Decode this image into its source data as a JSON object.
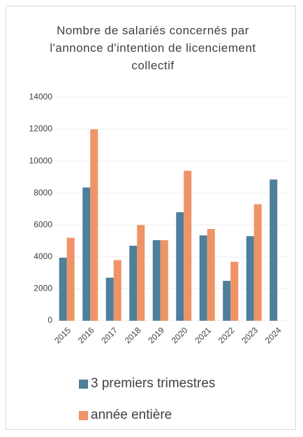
{
  "chart_data": {
    "type": "bar",
    "title": "Nombre de salariés concernés par l'annonce d'intention de licenciement collectif",
    "categories": [
      "2015",
      "2016",
      "2017",
      "2018",
      "2019",
      "2020",
      "2021",
      "2022",
      "2023",
      "2024"
    ],
    "series": [
      {
        "name": "3 premiers trimestres",
        "color": "#4e7f9b",
        "values": [
          3950,
          8350,
          2700,
          4700,
          5050,
          6800,
          5350,
          2500,
          5300,
          8850
        ]
      },
      {
        "name": "année entière",
        "color": "#ef9466",
        "values": [
          5200,
          12000,
          3800,
          6000,
          5050,
          9400,
          5750,
          3700,
          7300,
          null
        ]
      }
    ],
    "ylim": [
      0,
      14000
    ],
    "yticks": [
      0,
      2000,
      4000,
      6000,
      8000,
      10000,
      12000,
      14000
    ],
    "grid": true
  }
}
